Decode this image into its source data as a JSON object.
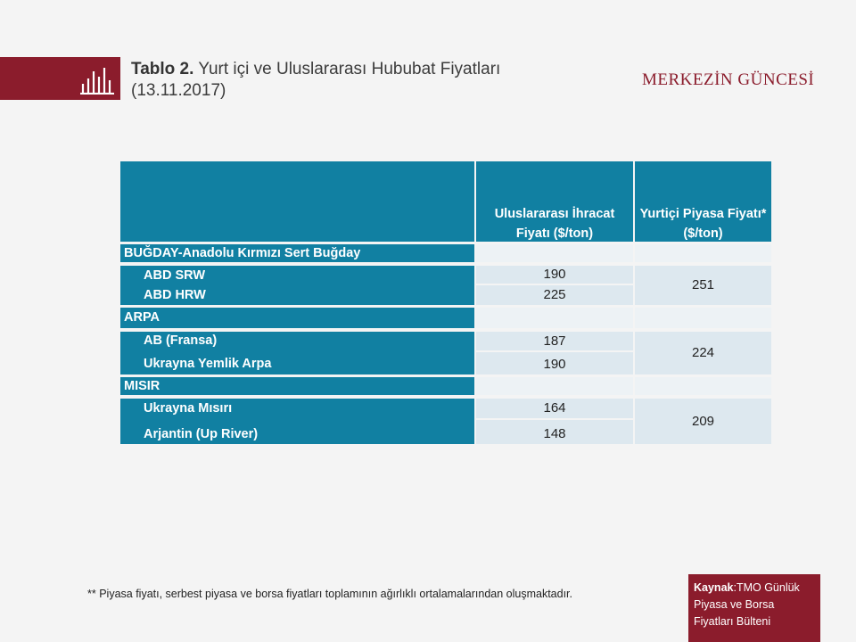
{
  "header": {
    "title_bold": "Tablo 2.",
    "title_rest": "Yurt içi ve Uluslararası Hububat Fiyatları",
    "title_date": "(13.11.2017)",
    "brand": "MERKEZİN GÜNCESİ",
    "icon": "bar-chart-icon"
  },
  "table": {
    "col1_header": "Uluslararası İhracat Fiyatı ($/ton)",
    "col2_header": "Yurtiçi Piyasa Fiyatı* ($/ton)",
    "groups": [
      {
        "name": "BUĞDAY-Anadolu Kırmızı Sert Buğday",
        "rows": [
          {
            "label": "ABD SRW",
            "export": "190"
          },
          {
            "label": "ABD HRW",
            "export": "225"
          }
        ],
        "domestic": "251"
      },
      {
        "name": "ARPA",
        "rows": [
          {
            "label": "AB (Fransa)",
            "export": "187"
          },
          {
            "label": "Ukrayna Yemlik Arpa",
            "export": "190"
          }
        ],
        "domestic": "224"
      },
      {
        "name": "MISIR",
        "rows": [
          {
            "label": "Ukrayna Mısırı",
            "export": "164"
          },
          {
            "label": "Arjantin (Up River)",
            "export": "148"
          }
        ],
        "domestic": "209"
      }
    ]
  },
  "footer": {
    "footnote": "** Piyasa fiyatı, serbest piyasa ve borsa fiyatları toplamının ağırlıklı ortalamalarından oluşmaktadır.",
    "source_label": "Kaynak",
    "source_text": ":TMO Günlük Piyasa ve Borsa Fiyatları Bülteni"
  },
  "colors": {
    "brand": "#8b1c2c",
    "teal": "#1180a2",
    "cell_light": "#dde8ef"
  }
}
